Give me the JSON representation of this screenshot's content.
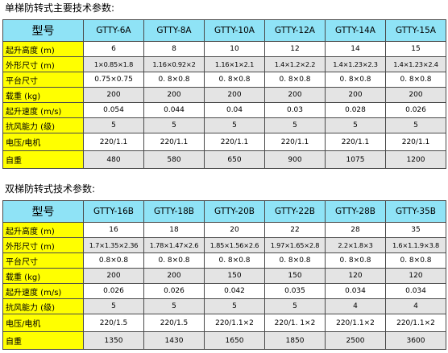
{
  "table1": {
    "title": "单梯防转式主要技术参数:",
    "header_label": "型号",
    "models": [
      "GTTY-6A",
      "GTTY-8A",
      "GTTY-10A",
      "GTTY-12A",
      "GTTY-14A",
      "GTTY-15A"
    ],
    "rows": [
      {
        "label": "起升高度 (m)",
        "values": [
          "6",
          "8",
          "10",
          "12",
          "14",
          "15"
        ]
      },
      {
        "label": "外形尺寸 (m)",
        "values": [
          "1×0.85×1.8",
          "1.16×0.92×2",
          "1.16×1×2.1",
          "1.4×1.2×2.2",
          "1.4×1.23×2.3",
          "1.4×1.23×2.4"
        ]
      },
      {
        "label": "平台尺寸",
        "values": [
          "0.75×0.75",
          "0. 8×0.8",
          "0. 8×0.8",
          "0. 8×0.8",
          "0. 8×0.8",
          "0. 8×0.8"
        ]
      },
      {
        "label": "载重 (kg)",
        "values": [
          "200",
          "200",
          "200",
          "200",
          "200",
          "200"
        ]
      },
      {
        "label": "起升速度 (m/s)",
        "values": [
          "0.054",
          "0.044",
          "0.04",
          "0.03",
          "0.028",
          "0.026"
        ]
      },
      {
        "label": "抗风能力 (级)",
        "values": [
          "5",
          "5",
          "5",
          "5",
          "5",
          "5"
        ]
      },
      {
        "label": "电压/电机",
        "values": [
          "220/1.1",
          "220/1.1",
          "220/1.1",
          "220/1.1",
          "220/1.1",
          "220/1.1"
        ]
      },
      {
        "label": "自重",
        "values": [
          "480",
          "580",
          "650",
          "900",
          "1075",
          "1200"
        ]
      }
    ]
  },
  "table2": {
    "title": "双梯防转式技术参数:",
    "header_label": "型号",
    "models": [
      "GTTY-16B",
      "GTTY-18B",
      "GTTY-20B",
      "GTTY-22B",
      "GTTY-28B",
      "GTTY-35B"
    ],
    "rows": [
      {
        "label": "起升高度 (m)",
        "values": [
          "16",
          "18",
          "20",
          "22",
          "28",
          "35"
        ]
      },
      {
        "label": "外形尺寸 (m)",
        "values": [
          "1.7×1.35×2.36",
          "1.78×1.47×2.6",
          "1.85×1.56×2.6",
          "1.97×1.65×2.8",
          "2.2×1.8×3",
          "1.6×1.1.9×3.8"
        ]
      },
      {
        "label": "平台尺寸",
        "values": [
          "0.8×0.8",
          "0. 8×0.8",
          "0. 8×0.8",
          "0. 8×0.8",
          "0. 8×0.8",
          "0. 8×0.8"
        ]
      },
      {
        "label": "载重 (kg)",
        "values": [
          "200",
          "200",
          "150",
          "150",
          "120",
          "120"
        ]
      },
      {
        "label": "起升速度 (m/s)",
        "values": [
          "0.026",
          "0.026",
          "0.042",
          "0.035",
          "0.034",
          "0.034"
        ]
      },
      {
        "label": "抗风能力 (级)",
        "values": [
          "5",
          "5",
          "5",
          "5",
          "4",
          "4"
        ]
      },
      {
        "label": "电压/电机",
        "values": [
          "220/1.5",
          "220/1.5",
          "220/1.1×2",
          "220/1. 1×2",
          "220/1.1×2",
          "220/1.1×2"
        ]
      },
      {
        "label": "自重",
        "values": [
          "1350",
          "1430",
          "1650",
          "1850",
          "2500",
          "3600"
        ]
      }
    ]
  },
  "colors": {
    "header_bg": "#8fe3f6",
    "label_bg": "#ffff00",
    "alt_row_bg": "#e4e4e4",
    "border": "#4a4a4a"
  }
}
